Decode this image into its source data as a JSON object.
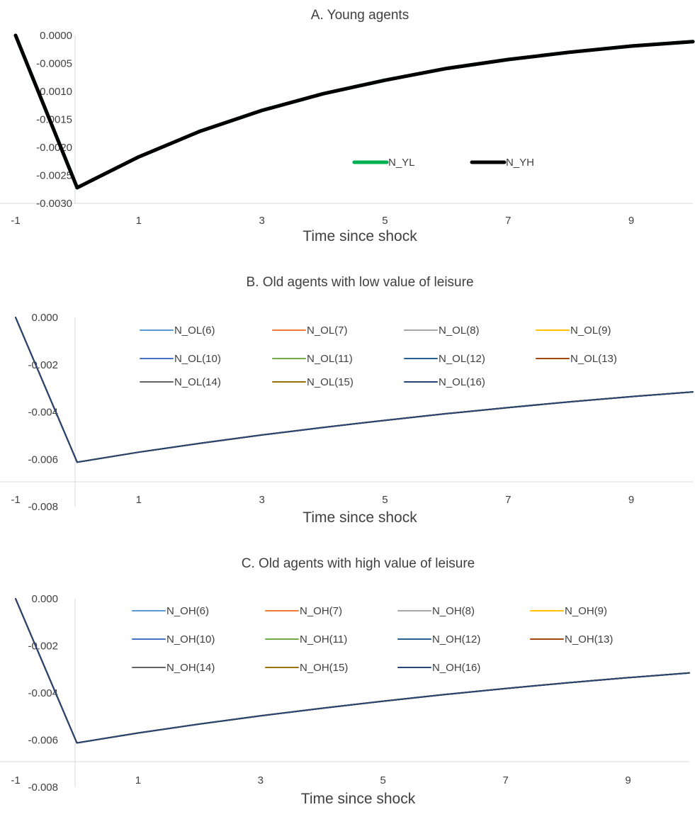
{
  "chart_data": [
    {
      "type": "line",
      "title": "A. Young agents",
      "xlabel": "Time since shock",
      "ylabel": "",
      "xlim": [
        -1,
        10
      ],
      "ylim": [
        -0.003,
        0.0
      ],
      "x_tick_labels": [
        "-1",
        "1",
        "3",
        "5",
        "7",
        "9"
      ],
      "y_tick_labels": [
        "0.0000",
        "-0.0005",
        "-0.0010",
        "-0.0015",
        "-0.0020",
        "-0.0025",
        "-0.0030"
      ],
      "grid": false,
      "legend_position": "center-right",
      "x": [
        -1,
        0,
        1,
        2,
        3,
        4,
        5,
        6,
        7,
        8,
        9,
        10
      ],
      "series": [
        {
          "name": "N_YL",
          "color": "#00B050",
          "values": [
            0.0,
            -0.00272,
            -0.00217,
            -0.00171,
            -0.00134,
            -0.00104,
            -0.0008,
            -0.00059,
            -0.00043,
            -0.0003,
            -0.00019,
            -0.00011
          ]
        },
        {
          "name": "N_YH",
          "color": "#000000",
          "values": [
            0.0,
            -0.00272,
            -0.00217,
            -0.00171,
            -0.00134,
            -0.00104,
            -0.0008,
            -0.00059,
            -0.00043,
            -0.0003,
            -0.00019,
            -0.00011
          ]
        }
      ]
    },
    {
      "type": "line",
      "title": "B. Old agents with low value of leisure",
      "xlabel": "Time since shock",
      "ylabel": "",
      "xlim": [
        -1,
        10
      ],
      "ylim": [
        -0.008,
        0.0
      ],
      "x_tick_labels": [
        "-1",
        "1",
        "3",
        "5",
        "7",
        "9"
      ],
      "y_tick_labels": [
        "0.000",
        "-0.002",
        "-0.004",
        "-0.006",
        "-0.008"
      ],
      "grid": false,
      "legend_position": "top",
      "x": [
        -1,
        0,
        1,
        2,
        3,
        4,
        5,
        6,
        7,
        8,
        9,
        10
      ],
      "series": [
        {
          "name": "N_OL(6)",
          "color": "#5B9BD5",
          "values": [
            0.0,
            -0.00612,
            -0.0057,
            -0.00532,
            -0.00497,
            -0.00465,
            -0.00435,
            -0.00407,
            -0.00381,
            -0.00357,
            -0.00335,
            -0.00315
          ]
        },
        {
          "name": "N_OL(7)",
          "color": "#ED7D31",
          "values": [
            0.0,
            -0.00612,
            -0.0057,
            -0.00532,
            -0.00497,
            -0.00465,
            -0.00435,
            -0.00407,
            -0.00381,
            -0.00357,
            -0.00335,
            -0.00315
          ]
        },
        {
          "name": "N_OL(8)",
          "color": "#A5A5A5",
          "values": [
            0.0,
            -0.00612,
            -0.0057,
            -0.00532,
            -0.00497,
            -0.00465,
            -0.00435,
            -0.00407,
            -0.00381,
            -0.00357,
            -0.00335,
            -0.00315
          ]
        },
        {
          "name": "N_OL(9)",
          "color": "#FFC000",
          "values": [
            0.0,
            -0.00612,
            -0.0057,
            -0.00532,
            -0.00497,
            -0.00465,
            -0.00435,
            -0.00407,
            -0.00381,
            -0.00357,
            -0.00335,
            -0.00315
          ]
        },
        {
          "name": "N_OL(10)",
          "color": "#4472C4",
          "values": [
            0.0,
            -0.00612,
            -0.0057,
            -0.00532,
            -0.00497,
            -0.00465,
            -0.00435,
            -0.00407,
            -0.00381,
            -0.00357,
            -0.00335,
            -0.00315
          ]
        },
        {
          "name": "N_OL(11)",
          "color": "#70AD47",
          "values": [
            0.0,
            -0.00612,
            -0.0057,
            -0.00532,
            -0.00497,
            -0.00465,
            -0.00435,
            -0.00407,
            -0.00381,
            -0.00357,
            -0.00335,
            -0.00315
          ]
        },
        {
          "name": "N_OL(12)",
          "color": "#255E91",
          "values": [
            0.0,
            -0.00612,
            -0.0057,
            -0.00532,
            -0.00497,
            -0.00465,
            -0.00435,
            -0.00407,
            -0.00381,
            -0.00357,
            -0.00335,
            -0.00315
          ]
        },
        {
          "name": "N_OL(13)",
          "color": "#9E480E",
          "values": [
            0.0,
            -0.00612,
            -0.0057,
            -0.00532,
            -0.00497,
            -0.00465,
            -0.00435,
            -0.00407,
            -0.00381,
            -0.00357,
            -0.00335,
            -0.00315
          ]
        },
        {
          "name": "N_OL(14)",
          "color": "#636363",
          "values": [
            0.0,
            -0.00612,
            -0.0057,
            -0.00532,
            -0.00497,
            -0.00465,
            -0.00435,
            -0.00407,
            -0.00381,
            -0.00357,
            -0.00335,
            -0.00315
          ]
        },
        {
          "name": "N_OL(15)",
          "color": "#997300",
          "values": [
            0.0,
            -0.00612,
            -0.0057,
            -0.00532,
            -0.00497,
            -0.00465,
            -0.00435,
            -0.00407,
            -0.00381,
            -0.00357,
            -0.00335,
            -0.00315
          ]
        },
        {
          "name": "N_OL(16)",
          "color": "#264478",
          "values": [
            0.0,
            -0.00612,
            -0.0057,
            -0.00532,
            -0.00497,
            -0.00465,
            -0.00435,
            -0.00407,
            -0.00381,
            -0.00357,
            -0.00335,
            -0.00315
          ]
        }
      ]
    },
    {
      "type": "line",
      "title": "C. Old agents with high value of leisure",
      "xlabel": "Time since shock",
      "ylabel": "",
      "xlim": [
        -1,
        10
      ],
      "ylim": [
        -0.008,
        0.0
      ],
      "x_tick_labels": [
        "-1",
        "1",
        "3",
        "5",
        "7",
        "9"
      ],
      "y_tick_labels": [
        "0.000",
        "-0.002",
        "-0.004",
        "-0.006",
        "-0.008"
      ],
      "grid": false,
      "legend_position": "top",
      "x": [
        -1,
        0,
        1,
        2,
        3,
        4,
        5,
        6,
        7,
        8,
        9,
        10
      ],
      "series": [
        {
          "name": "N_OH(6)",
          "color": "#5B9BD5",
          "values": [
            0.0,
            -0.00612,
            -0.0057,
            -0.00532,
            -0.00497,
            -0.00465,
            -0.00435,
            -0.00407,
            -0.00381,
            -0.00357,
            -0.00335,
            -0.00315
          ]
        },
        {
          "name": "N_OH(7)",
          "color": "#ED7D31",
          "values": [
            0.0,
            -0.00612,
            -0.0057,
            -0.00532,
            -0.00497,
            -0.00465,
            -0.00435,
            -0.00407,
            -0.00381,
            -0.00357,
            -0.00335,
            -0.00315
          ]
        },
        {
          "name": "N_OH(8)",
          "color": "#A5A5A5",
          "values": [
            0.0,
            -0.00612,
            -0.0057,
            -0.00532,
            -0.00497,
            -0.00465,
            -0.00435,
            -0.00407,
            -0.00381,
            -0.00357,
            -0.00335,
            -0.00315
          ]
        },
        {
          "name": "N_OH(9)",
          "color": "#FFC000",
          "values": [
            0.0,
            -0.00612,
            -0.0057,
            -0.00532,
            -0.00497,
            -0.00465,
            -0.00435,
            -0.00407,
            -0.00381,
            -0.00357,
            -0.00335,
            -0.00315
          ]
        },
        {
          "name": "N_OH(10)",
          "color": "#4472C4",
          "values": [
            0.0,
            -0.00612,
            -0.0057,
            -0.00532,
            -0.00497,
            -0.00465,
            -0.00435,
            -0.00407,
            -0.00381,
            -0.00357,
            -0.00335,
            -0.00315
          ]
        },
        {
          "name": "N_OH(11)",
          "color": "#70AD47",
          "values": [
            0.0,
            -0.00612,
            -0.0057,
            -0.00532,
            -0.00497,
            -0.00465,
            -0.00435,
            -0.00407,
            -0.00381,
            -0.00357,
            -0.00335,
            -0.00315
          ]
        },
        {
          "name": "N_OH(12)",
          "color": "#255E91",
          "values": [
            0.0,
            -0.00612,
            -0.0057,
            -0.00532,
            -0.00497,
            -0.00465,
            -0.00435,
            -0.00407,
            -0.00381,
            -0.00357,
            -0.00335,
            -0.00315
          ]
        },
        {
          "name": "N_OH(13)",
          "color": "#9E480E",
          "values": [
            0.0,
            -0.00612,
            -0.0057,
            -0.00532,
            -0.00497,
            -0.00465,
            -0.00435,
            -0.00407,
            -0.00381,
            -0.00357,
            -0.00335,
            -0.00315
          ]
        },
        {
          "name": "N_OH(14)",
          "color": "#636363",
          "values": [
            0.0,
            -0.00612,
            -0.0057,
            -0.00532,
            -0.00497,
            -0.00465,
            -0.00435,
            -0.00407,
            -0.00381,
            -0.00357,
            -0.00335,
            -0.00315
          ]
        },
        {
          "name": "N_OH(15)",
          "color": "#997300",
          "values": [
            0.0,
            -0.00612,
            -0.0057,
            -0.00532,
            -0.00497,
            -0.00465,
            -0.00435,
            -0.00407,
            -0.00381,
            -0.00357,
            -0.00335,
            -0.00315
          ]
        },
        {
          "name": "N_OH(16)",
          "color": "#264478",
          "values": [
            0.0,
            -0.00612,
            -0.0057,
            -0.00532,
            -0.00497,
            -0.00465,
            -0.00435,
            -0.00407,
            -0.00381,
            -0.00357,
            -0.00335,
            -0.00315
          ]
        }
      ]
    }
  ]
}
